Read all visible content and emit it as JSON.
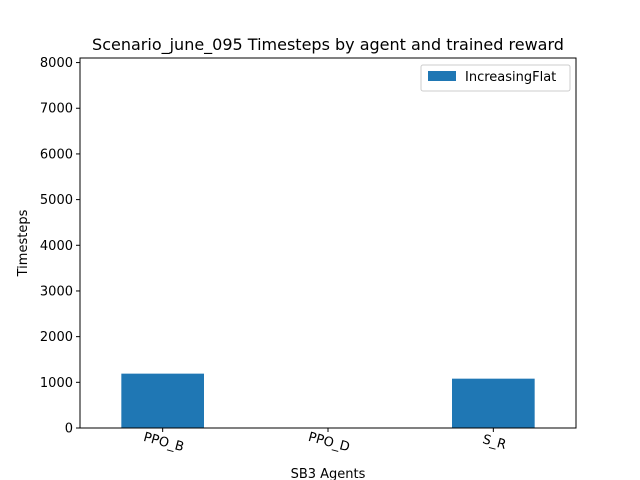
{
  "chart_data": {
    "type": "bar",
    "title": "Scenario_june_095 Timesteps by agent and trained reward",
    "xlabel": "SB3 Agents",
    "ylabel": "Timesteps",
    "categories": [
      "PPO_B",
      "PPO_D",
      "S_R"
    ],
    "series": [
      {
        "name": "IncreasingFlat",
        "values": [
          1190,
          0,
          1080
        ],
        "color": "#1f77b4"
      }
    ],
    "ylim": [
      0,
      8000
    ],
    "yticks": [
      0,
      1000,
      2000,
      3000,
      4000,
      5000,
      6000,
      7000,
      8000
    ],
    "grid": false,
    "legend_position": "top-right"
  }
}
